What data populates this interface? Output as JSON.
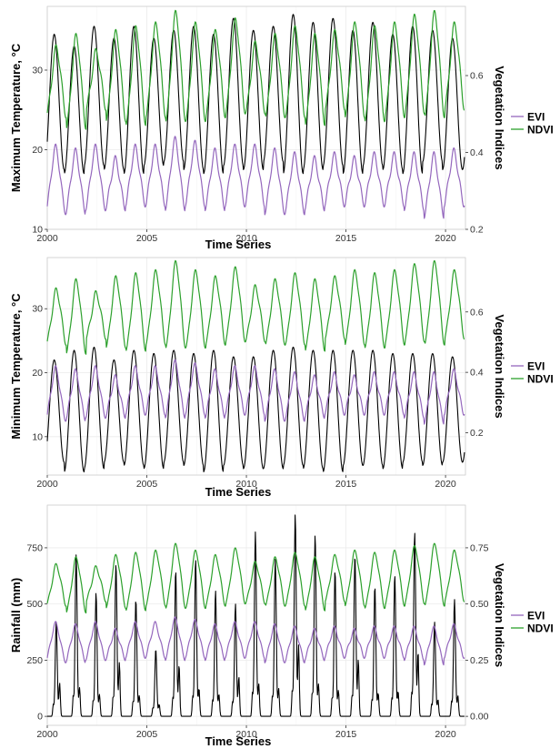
{
  "colors": {
    "black": "#000000",
    "evi": "#9467bd",
    "ndvi": "#2ca02c",
    "grid": "#ebebeb",
    "panel_border": "#cccccc"
  },
  "chart_data": [
    {
      "type": "line",
      "xlabel": "Time Series",
      "ylabel": "Maximum Temperature, °C",
      "y2label": "Vegetation Indices",
      "xlim": [
        2000,
        2021
      ],
      "ylim": [
        10,
        38
      ],
      "y2lim": [
        0.2,
        0.78
      ],
      "xticks": [
        "2000",
        "2005",
        "2010",
        "2015",
        "2020"
      ],
      "yticks": [
        "10",
        "20",
        "30"
      ],
      "y2ticks": [
        "0.2",
        "0.4",
        "0.6"
      ],
      "legend_position": "right",
      "legend": [
        "EVI",
        "NDVI"
      ],
      "series": [
        {
          "axis": "left",
          "color": "black",
          "minima": [
            17.5,
            17.0,
            18.0,
            17.5,
            17.0,
            18.0,
            18.5,
            17.5,
            17.0,
            18.0,
            17.5,
            18.5,
            17.0,
            17.5,
            18.0,
            17.0,
            18.0,
            17.5,
            17.0,
            18.5,
            17.5
          ],
          "maxima": [
            34.5,
            33.0,
            35.5,
            34.0,
            35.5,
            34.0,
            35.0,
            35.5,
            34.5,
            36.5,
            35.0,
            35.5,
            37.0,
            36.0,
            36.5,
            35.0,
            36.0,
            34.5,
            35.5,
            35.0,
            34.0
          ]
        },
        {
          "name": "EVI",
          "axis": "right",
          "color": "evi",
          "minima": [
            0.25,
            0.25,
            0.26,
            0.26,
            0.27,
            0.27,
            0.26,
            0.27,
            0.26,
            0.27,
            0.27,
            0.25,
            0.25,
            0.26,
            0.27,
            0.27,
            0.27,
            0.27,
            0.26,
            0.24,
            0.27
          ],
          "maxima": [
            0.41,
            0.4,
            0.41,
            0.38,
            0.41,
            0.41,
            0.43,
            0.42,
            0.4,
            0.41,
            0.41,
            0.4,
            0.39,
            0.38,
            0.39,
            0.38,
            0.39,
            0.39,
            0.39,
            0.39,
            0.4
          ]
        },
        {
          "name": "NDVI",
          "axis": "right",
          "color": "ndvi",
          "minima": [
            0.5,
            0.47,
            0.52,
            0.49,
            0.48,
            0.5,
            0.49,
            0.49,
            0.5,
            0.51,
            0.51,
            0.5,
            0.5,
            0.48,
            0.52,
            0.5,
            0.49,
            0.5,
            0.51,
            0.5,
            0.52
          ],
          "maxima": [
            0.67,
            0.7,
            0.66,
            0.71,
            0.72,
            0.73,
            0.76,
            0.73,
            0.71,
            0.74,
            0.68,
            0.7,
            0.72,
            0.7,
            0.71,
            0.73,
            0.72,
            0.73,
            0.75,
            0.76,
            0.73
          ]
        }
      ]
    },
    {
      "type": "line",
      "xlabel": "Time Series",
      "ylabel": "Minimum Temperature, °C",
      "y2label": "Vegetation Indices",
      "xlim": [
        2000,
        2021
      ],
      "ylim": [
        4,
        38
      ],
      "y2lim": [
        0.06,
        0.78
      ],
      "xticks": [
        "2000",
        "2005",
        "2010",
        "2015",
        "2020"
      ],
      "yticks": [
        "10",
        "20",
        "30"
      ],
      "y2ticks": [
        "0.2",
        "0.4",
        "0.6"
      ],
      "legend_position": "right",
      "legend": [
        "EVI",
        "NDVI"
      ],
      "series": [
        {
          "axis": "left",
          "color": "black",
          "minima": [
            6.0,
            4.5,
            5.0,
            6.0,
            5.5,
            5.0,
            6.0,
            5.5,
            4.5,
            5.5,
            5.0,
            5.0,
            5.5,
            5.0,
            4.5,
            5.5,
            5.5,
            5.0,
            6.0,
            5.5,
            6.0
          ],
          "maxima": [
            22.0,
            23.5,
            24.0,
            22.0,
            23.5,
            23.0,
            23.5,
            23.0,
            23.5,
            22.5,
            22.5,
            23.5,
            24.0,
            23.5,
            23.5,
            23.5,
            23.5,
            23.0,
            23.0,
            23.0,
            22.5
          ]
        },
        {
          "name": "EVI",
          "axis": "right",
          "color": "evi",
          "minima": [
            0.25,
            0.25,
            0.26,
            0.26,
            0.27,
            0.27,
            0.26,
            0.27,
            0.26,
            0.27,
            0.27,
            0.25,
            0.25,
            0.26,
            0.27,
            0.27,
            0.27,
            0.27,
            0.26,
            0.24,
            0.27
          ],
          "maxima": [
            0.41,
            0.4,
            0.41,
            0.38,
            0.41,
            0.41,
            0.43,
            0.42,
            0.4,
            0.41,
            0.41,
            0.4,
            0.39,
            0.38,
            0.39,
            0.38,
            0.39,
            0.39,
            0.39,
            0.39,
            0.4
          ]
        },
        {
          "name": "NDVI",
          "axis": "right",
          "color": "ndvi",
          "minima": [
            0.5,
            0.47,
            0.52,
            0.49,
            0.48,
            0.5,
            0.49,
            0.49,
            0.5,
            0.51,
            0.51,
            0.5,
            0.5,
            0.48,
            0.52,
            0.5,
            0.49,
            0.5,
            0.51,
            0.5,
            0.52
          ],
          "maxima": [
            0.67,
            0.7,
            0.66,
            0.71,
            0.72,
            0.73,
            0.76,
            0.73,
            0.71,
            0.74,
            0.68,
            0.7,
            0.72,
            0.7,
            0.71,
            0.73,
            0.72,
            0.73,
            0.75,
            0.76,
            0.73
          ]
        }
      ]
    },
    {
      "type": "line",
      "xlabel": "Time Series",
      "ylabel": "Rainfall (mm)",
      "y2label": "Vegetation Indices",
      "xlim": [
        2000,
        2021
      ],
      "ylim": [
        -40,
        940
      ],
      "y2lim": [
        -0.04,
        0.94
      ],
      "xticks": [
        "2000",
        "2005",
        "2010",
        "2015",
        "2020"
      ],
      "yticks": [
        "0",
        "250",
        "500",
        "750"
      ],
      "y2ticks": [
        "0.00",
        "0.25",
        "0.50",
        "0.75"
      ],
      "legend_position": "right",
      "legend": [
        "EVI",
        "NDVI"
      ],
      "series": [
        {
          "axis": "left",
          "color": "black",
          "minima": [
            0,
            0,
            0,
            0,
            0,
            0,
            0,
            0,
            0,
            0,
            0,
            0,
            0,
            0,
            0,
            0,
            0,
            0,
            0,
            0,
            0
          ],
          "maxima": [
            420,
            720,
            550,
            680,
            520,
            300,
            650,
            700,
            560,
            500,
            820,
            700,
            900,
            810,
            650,
            720,
            580,
            630,
            820,
            420,
            520
          ]
        },
        {
          "name": "EVI",
          "axis": "right",
          "color": "evi",
          "minima": [
            0.25,
            0.25,
            0.26,
            0.26,
            0.27,
            0.27,
            0.26,
            0.27,
            0.26,
            0.27,
            0.27,
            0.25,
            0.25,
            0.26,
            0.27,
            0.27,
            0.27,
            0.27,
            0.26,
            0.24,
            0.27
          ],
          "maxima": [
            0.41,
            0.4,
            0.41,
            0.38,
            0.41,
            0.41,
            0.43,
            0.42,
            0.4,
            0.41,
            0.41,
            0.4,
            0.39,
            0.38,
            0.39,
            0.38,
            0.39,
            0.39,
            0.39,
            0.39,
            0.4
          ]
        },
        {
          "name": "NDVI",
          "axis": "right",
          "color": "ndvi",
          "minima": [
            0.5,
            0.47,
            0.52,
            0.49,
            0.48,
            0.5,
            0.49,
            0.49,
            0.5,
            0.51,
            0.51,
            0.5,
            0.5,
            0.48,
            0.52,
            0.5,
            0.49,
            0.5,
            0.51,
            0.5,
            0.52
          ],
          "maxima": [
            0.67,
            0.7,
            0.66,
            0.71,
            0.72,
            0.73,
            0.76,
            0.73,
            0.71,
            0.74,
            0.68,
            0.7,
            0.72,
            0.7,
            0.71,
            0.73,
            0.72,
            0.73,
            0.75,
            0.76,
            0.73
          ]
        }
      ]
    }
  ]
}
